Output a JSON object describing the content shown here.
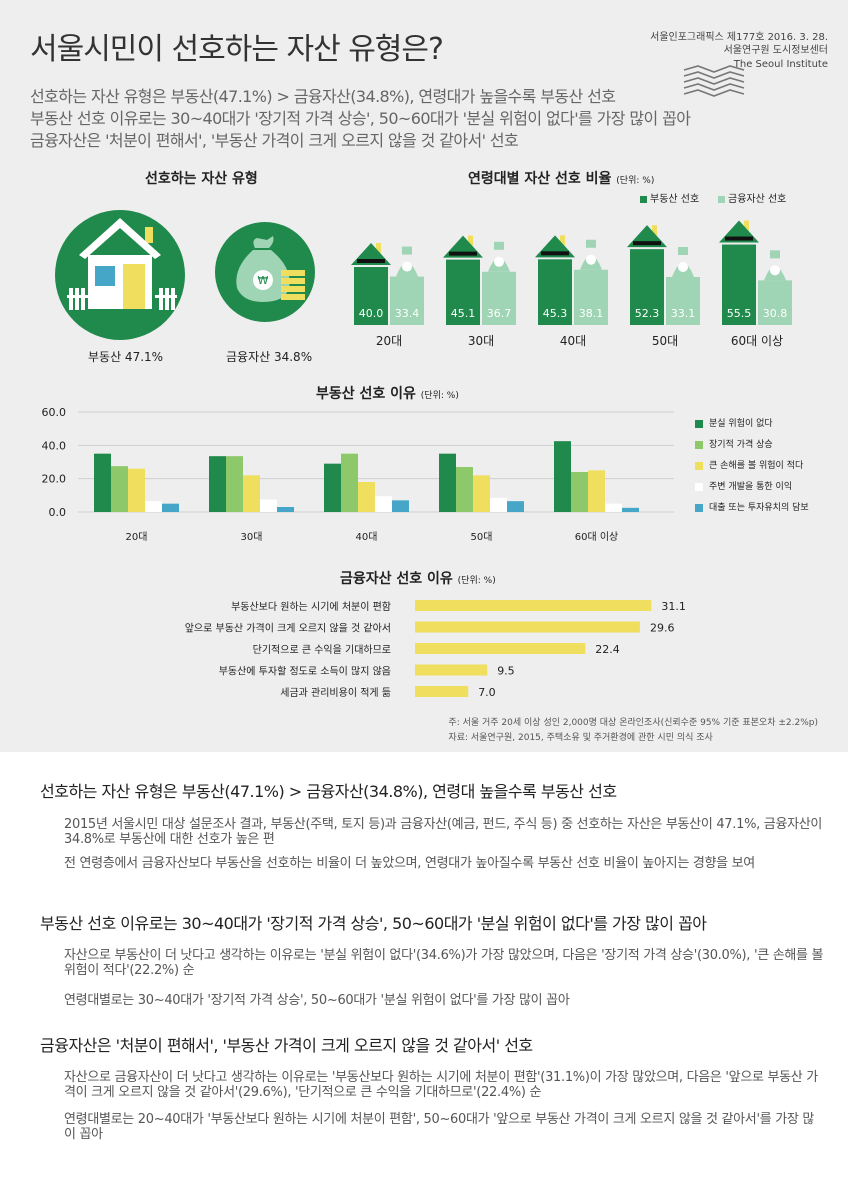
{
  "header": {
    "title": "서울시민이 선호하는 자산 유형은?",
    "issue": "서울인포그래픽스 제177호 2016. 3. 28.",
    "institute_ko": "서울연구원 도시정보센터",
    "institute_en": "The Seoul Institute",
    "subtitles": [
      "선호하는 자산 유형은 부동산(47.1%) > 금융자산(34.8%), 연령대가 높을수록 부동산 선호",
      "부동산 선호 이유로는 30~40대가 '장기적 가격 상승', 50~60대가 '분실 위험이 없다'를 가장 많이 꼽아",
      "금융자산은 '처분이 편해서', '부동산 가격이 크게 오르지 않을 것 같아서' 선호"
    ]
  },
  "colors": {
    "dark_green": "#1f8a4c",
    "light_green": "#8dc86a",
    "mint": "#9fd4b4",
    "yellow": "#f0df5e",
    "white": "#ffffff",
    "blue": "#45a6c7",
    "bg": "#eeeeee"
  },
  "icons": {
    "house": "house-icon",
    "money_bag": "money-bag-icon",
    "coin": "won-coin-icon"
  },
  "asset_type": {
    "title": "선호하는 자산 유형",
    "real_estate_label": "부동산 47.1%",
    "financial_label": "금융자산 34.8%"
  },
  "chart_data": [
    {
      "type": "pie",
      "title": "선호하는 자산 유형",
      "labels": [
        "부동산",
        "금융자산"
      ],
      "values": [
        47.1,
        34.8
      ],
      "unit": "%"
    },
    {
      "type": "bar",
      "title": "연령대별 자산 선호 비율",
      "unit_label": "(단위: %)",
      "categories": [
        "20대",
        "30대",
        "40대",
        "50대",
        "60대 이상"
      ],
      "series": [
        {
          "name": "부동산 선호",
          "values": [
            40.0,
            45.1,
            45.3,
            52.3,
            55.5
          ]
        },
        {
          "name": "금융자산 선호",
          "values": [
            33.4,
            36.7,
            38.1,
            33.1,
            30.8
          ]
        }
      ],
      "value_labels": [
        [
          "40.0",
          "45.1",
          "45.3",
          "52.3",
          "55.5"
        ],
        [
          "33.4",
          "36.7",
          "38.1",
          "33.1",
          "30.8"
        ]
      ],
      "legend": "top-right"
    },
    {
      "type": "bar",
      "title": "부동산 선호 이유",
      "unit_label": "(단위: %)",
      "categories": [
        "20대",
        "30대",
        "40대",
        "50대",
        "60대 이상"
      ],
      "yticks": [
        "60.0",
        "40.0",
        "20.0",
        "0.0"
      ],
      "ylim": [
        0,
        60
      ],
      "series": [
        {
          "name": "분실 위험이 없다",
          "values": [
            35,
            33.5,
            29,
            35,
            42.5
          ]
        },
        {
          "name": "장기적 가격 상승",
          "values": [
            27.5,
            33.5,
            35,
            27,
            24
          ]
        },
        {
          "name": "큰 손해를 볼 위험이 적다",
          "values": [
            26,
            22,
            18,
            22,
            25
          ]
        },
        {
          "name": "주변 개발을 통한 이익",
          "values": [
            6.5,
            7.5,
            9.5,
            8.5,
            5
          ]
        },
        {
          "name": "대출 또는 투자유치의 담보",
          "values": [
            5,
            3,
            7,
            6.5,
            2.5
          ]
        }
      ],
      "legend": "right"
    },
    {
      "type": "bar",
      "orientation": "horizontal",
      "title": "금융자산 선호 이유",
      "unit_label": "(단위: %)",
      "categories": [
        "부동산보다 원하는 시기에 처분이 편함",
        "앞으로 부동산 가격이 크게 오르지 않을 것 같아서",
        "단기적으로 큰 수익을 기대하므로",
        "부동산에 투자할 정도로 소득이 많지 않음",
        "세금과 관리비용이 적게 듦"
      ],
      "values": [
        31.1,
        29.6,
        22.4,
        9.5,
        7.0
      ],
      "value_labels": [
        "31.1",
        "29.6",
        "22.4",
        "9.5",
        "7.0"
      ]
    }
  ],
  "notes": {
    "note1": "주: 서울 거주 20세 이상 성인 2,000명 대상 온라인조사(신뢰수준 95% 기준 표본오차 ±2.2%p)",
    "note2": "자료: 서울연구원, 2015, 주택소유 및 주거환경에 관한 시민 의식 조사"
  },
  "body": {
    "sections": [
      {
        "heading": "선호하는 자산 유형은 부동산(47.1%) > 금융자산(34.8%), 연령대 높을수록 부동산 선호",
        "paragraphs": [
          "2015년 서울시민 대상 설문조사 결과, 부동산(주택, 토지 등)과 금융자산(예금, 펀드, 주식 등) 중 선호하는 자산은 부동산이 47.1%, 금융자산이 34.8%로 부동산에 대한 선호가 높은 편",
          "전 연령층에서 금융자산보다 부동산을 선호하는 비율이 더 높았으며, 연령대가 높아질수록 부동산 선호 비율이 높아지는 경향을 보여"
        ]
      },
      {
        "heading": "부동산 선호 이유로는 30~40대가 '장기적 가격 상승', 50~60대가 '분실 위험이 없다'를 가장 많이 꼽아",
        "paragraphs": [
          "자산으로 부동산이 더 낫다고 생각하는 이유로는 '분실 위험이 없다'(34.6%)가 가장 많았으며, 다음은 '장기적 가격 상승'(30.0%), '큰 손해를 볼 위험이 적다'(22.2%) 순",
          "연령대별로는 30~40대가 '장기적 가격 상승', 50~60대가 '분실 위험이 없다'를 가장 많이 꼽아"
        ]
      },
      {
        "heading": "금융자산은 '처분이 편해서', '부동산 가격이 크게 오르지 않을 것 같아서' 선호",
        "paragraphs": [
          "자산으로 금융자산이 더 낫다고 생각하는 이유로는 '부동산보다 원하는 시기에 처분이 편함'(31.1%)이 가장 많았으며, 다음은 '앞으로 부동산 가격이 크게 오르지 않을 것 같아서'(29.6%), '단기적으로 큰 수익을 기대하므로'(22.4%) 순",
          "연령대별로는 20~40대가 '부동산보다 원하는 시기에 처분이 편함', 50~60대가 '앞으로 부동산 가격이 크게 오르지 않을 것 같아서'를 가장 많이 꼽아"
        ]
      }
    ]
  }
}
